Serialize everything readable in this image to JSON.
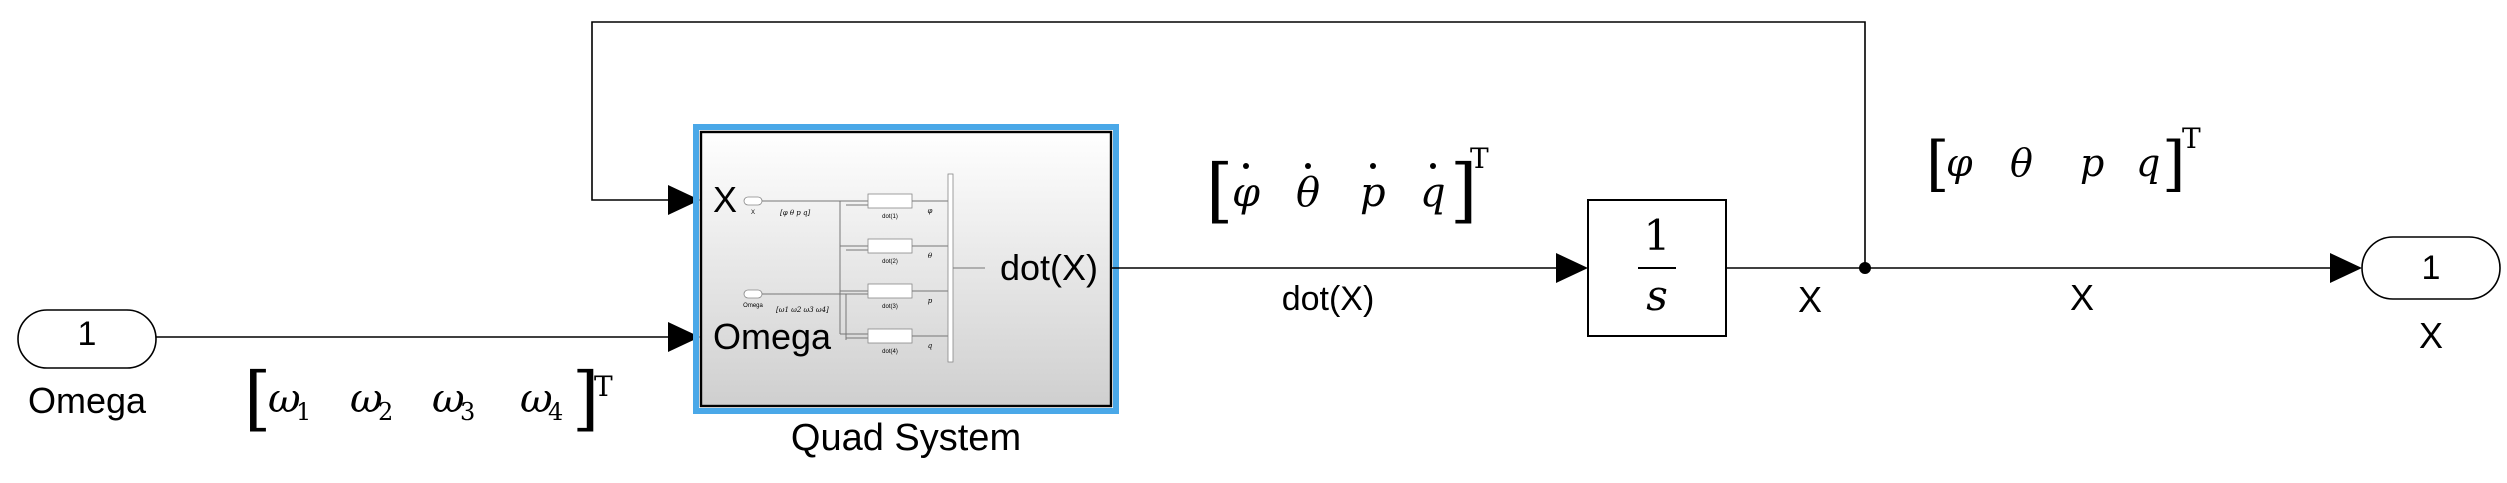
{
  "inport": {
    "number": "1",
    "name": "Omega"
  },
  "outport": {
    "number": "1",
    "name": "X"
  },
  "subsystem": {
    "name": "Quad System",
    "inputs": [
      "X",
      "Omega"
    ],
    "output": "dot(X)",
    "preview": {
      "in_labels": [
        "X",
        "Omega"
      ],
      "block_labels": [
        "dot(1)",
        "dot(2)",
        "dot(3)",
        "dot(4)"
      ],
      "signal_labels": [
        "φ",
        "θ",
        "p",
        "q"
      ],
      "vector_labels": [
        "[φ θ p q]",
        "[ω1 ω2 ω3 ω4]"
      ]
    }
  },
  "integrator": {
    "numerator": "1",
    "denominator": "s"
  },
  "signals": {
    "omega_vector": {
      "bracket_open": "[",
      "items": [
        "ω",
        "ω",
        "ω",
        "ω"
      ],
      "subs": [
        "1",
        "2",
        "3",
        "4"
      ],
      "bracket_close": "]",
      "transpose": "T"
    },
    "state_dot_vector": {
      "bracket_open": "[",
      "items": [
        "φ",
        "θ",
        "p",
        "q"
      ],
      "bracket_close": "]",
      "transpose": "T"
    },
    "state_vector": {
      "bracket_open": "[",
      "items": [
        "φ",
        "θ",
        "p",
        "q"
      ],
      "bracket_close": "]",
      "transpose": "T"
    },
    "dotx_line_label": "dot(X)",
    "x_line_label_left": "X",
    "x_line_label_right": "X"
  },
  "colors": {
    "selection": "#4aa8e8",
    "line": "#000000"
  }
}
